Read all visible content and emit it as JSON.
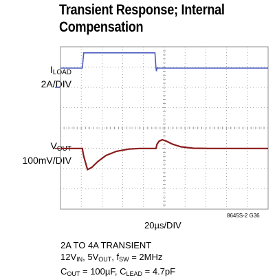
{
  "title_line1": "Transient Response; Internal",
  "title_line2": "Compensation",
  "y_labels": {
    "iload_name": "I",
    "iload_sub": "LOAD",
    "iload_scale": "2A/DIV",
    "vout_name": "V",
    "vout_sub": "OUT",
    "vout_scale": "100mV/DIV"
  },
  "x_scale": "20µs/DIV",
  "figure_code": "8645S-2 G36",
  "conditions": {
    "line1": "2A TO 4A TRANSIENT",
    "l2_a": "12V",
    "l2_a_sub": "IN",
    "l2_b": ", 5V",
    "l2_b_sub": "OUT",
    "l2_c": ", f",
    "l2_c_sub": "SW",
    "l2_d": " = 2MHz",
    "l3_a": "C",
    "l3_a_sub": "OUT",
    "l3_b": " = 100µF, C",
    "l3_b_sub": "LEAD",
    "l3_c": " = 4.7pF"
  },
  "chart_data": {
    "type": "line",
    "x_divisions": 10,
    "y_divisions": 8,
    "x_unit_per_div": "20µs",
    "colors": {
      "grid": "#8c8c8c",
      "iload": "#4a5cc0",
      "vout": "#8b1a1a"
    },
    "series": [
      {
        "name": "ILOAD",
        "x": [
          0,
          1.05,
          1.12,
          4.55,
          4.6,
          4.62,
          4.66,
          4.7,
          10
        ],
        "y": [
          6.95,
          6.95,
          7.7,
          7.7,
          6.95,
          6.8,
          6.97,
          6.95,
          6.95
        ]
      },
      {
        "name": "VOUT",
        "x": [
          0,
          1.05,
          1.12,
          1.3,
          1.5,
          1.8,
          2.2,
          2.7,
          3.3,
          3.8,
          4.6,
          4.65,
          4.75,
          4.9,
          5.1,
          5.4,
          5.8,
          6.4,
          7.2,
          8.0,
          10
        ],
        "y": [
          2.99,
          2.99,
          2.6,
          1.95,
          2.05,
          2.35,
          2.65,
          2.85,
          2.96,
          2.99,
          2.99,
          3.2,
          3.35,
          3.42,
          3.35,
          3.2,
          3.07,
          3.0,
          2.99,
          2.99,
          2.99
        ]
      }
    ]
  }
}
